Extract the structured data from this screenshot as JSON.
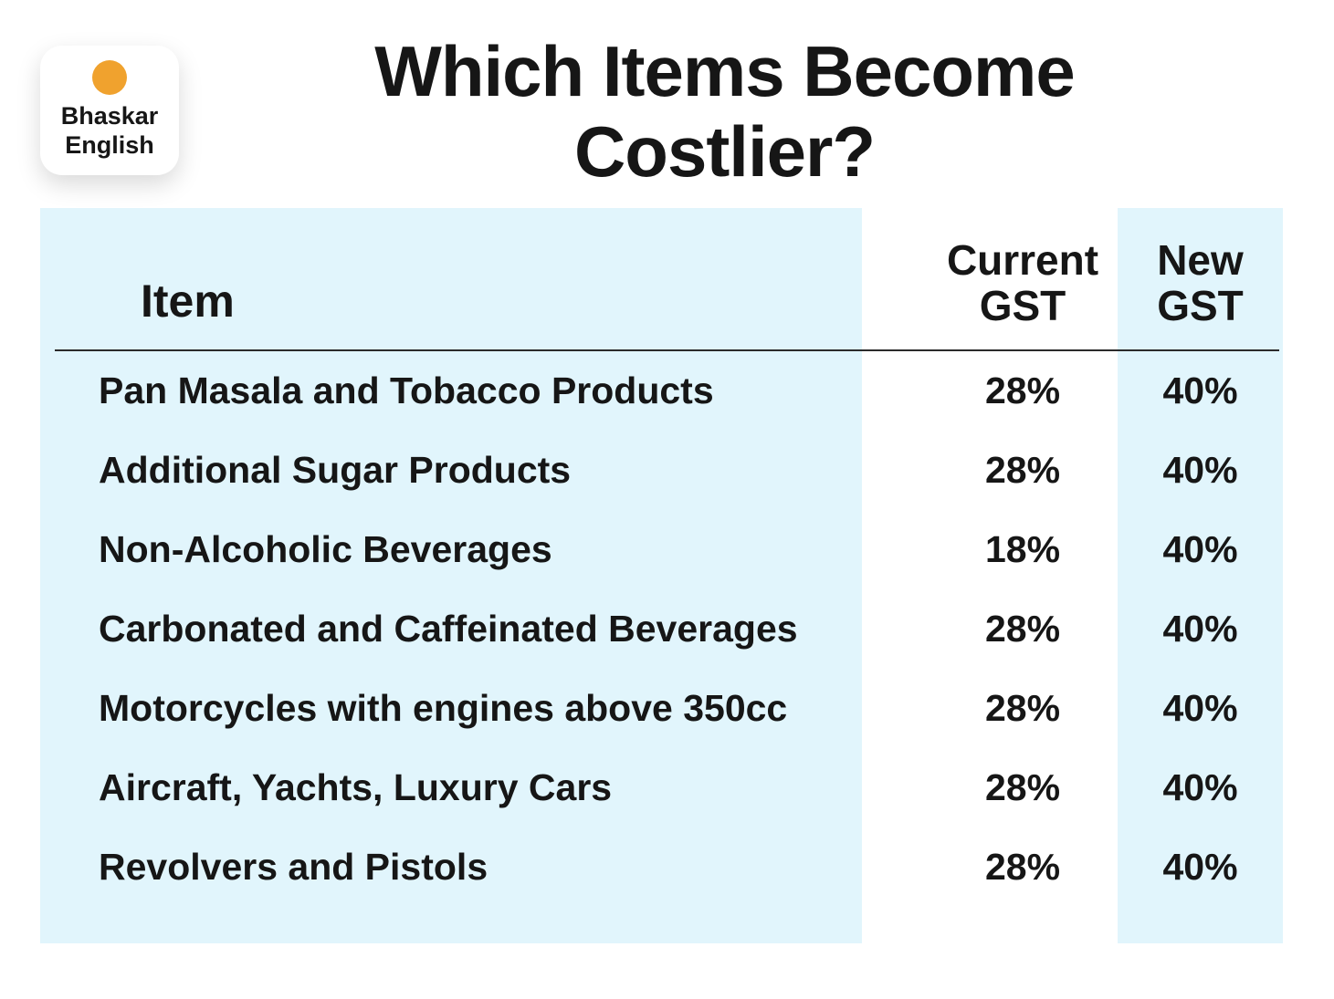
{
  "brand": {
    "line1": "Bhaskar",
    "line2": "English"
  },
  "title_display": "Which Items Become\nCostlier?",
  "colors": {
    "panel_blue": "#E1F5FC",
    "accent_orange": "#F0A22E",
    "text_dark": "#161616"
  },
  "table_header": {
    "item": "Item",
    "current": "Current\nGST",
    "new": "New\nGST"
  },
  "chart_data": {
    "type": "table",
    "title": "Which Items Become Costlier?",
    "columns": [
      "Item",
      "Current GST",
      "New GST"
    ],
    "rows": [
      [
        "Pan Masala and Tobacco Products",
        "28%",
        "40%"
      ],
      [
        "Additional Sugar Products",
        "28%",
        "40%"
      ],
      [
        "Non-Alcoholic Beverages",
        "18%",
        "40%"
      ],
      [
        "Carbonated and Caffeinated Beverages",
        "28%",
        "40%"
      ],
      [
        "Motorcycles with engines above 350cc",
        "28%",
        "40%"
      ],
      [
        "Aircraft, Yachts, Luxury Cars",
        "28%",
        "40%"
      ],
      [
        "Revolvers and Pistols",
        "28%",
        "40%"
      ]
    ]
  }
}
